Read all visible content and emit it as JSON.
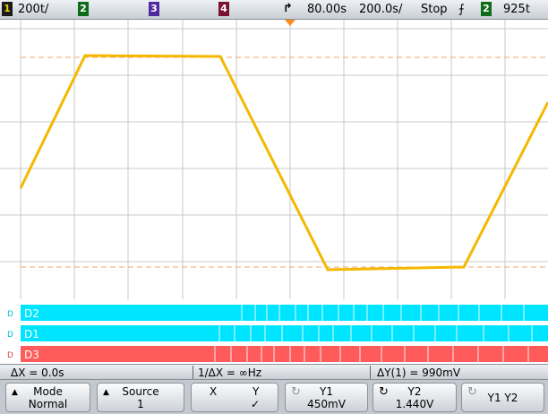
{
  "topbar": {
    "ch1_num": "1",
    "ch1_scale": "200t/",
    "ch2_num": "2",
    "ch3_num": "3",
    "ch4_num": "4",
    "trigger_icon": "trigger-edge-icon",
    "time_delay": "80.00s",
    "time_scale": "200.0s/",
    "run_state": "Stop",
    "slope_icon": "rising-slope-icon",
    "trig_source": "2",
    "trig_level": "925t"
  },
  "digital": {
    "labels": [
      "D2",
      "D1",
      "D3"
    ],
    "colors": [
      "#00e5ff",
      "#00e5ff",
      "#ff5b5b"
    ]
  },
  "measurements": {
    "delta_x": "ΔX = 0.0s",
    "inv_delta_x": "1/ΔX = ∞Hz",
    "delta_y": "ΔY(1) = 990mV"
  },
  "softkeys": {
    "mode_label": "Mode",
    "mode_value": "Normal",
    "source_label": "Source",
    "source_value": "1",
    "x_label": "X",
    "y_label": "Y",
    "y_check": "✓",
    "y1_label": "Y1",
    "y1_value": "450mV",
    "y2_label": "Y2",
    "y2_value": "1.440V",
    "y1y2_label": "Y1 Y2"
  },
  "colors": {
    "trace": "#f5b800",
    "ch1": "#f5d000",
    "ch2": "#19d32b",
    "ch3": "#8a4dff",
    "ch4": "#ff2f6b",
    "cursor": "#f2a66b",
    "digital_cyan": "#00e5ff",
    "digital_red": "#ff5b5b"
  }
}
